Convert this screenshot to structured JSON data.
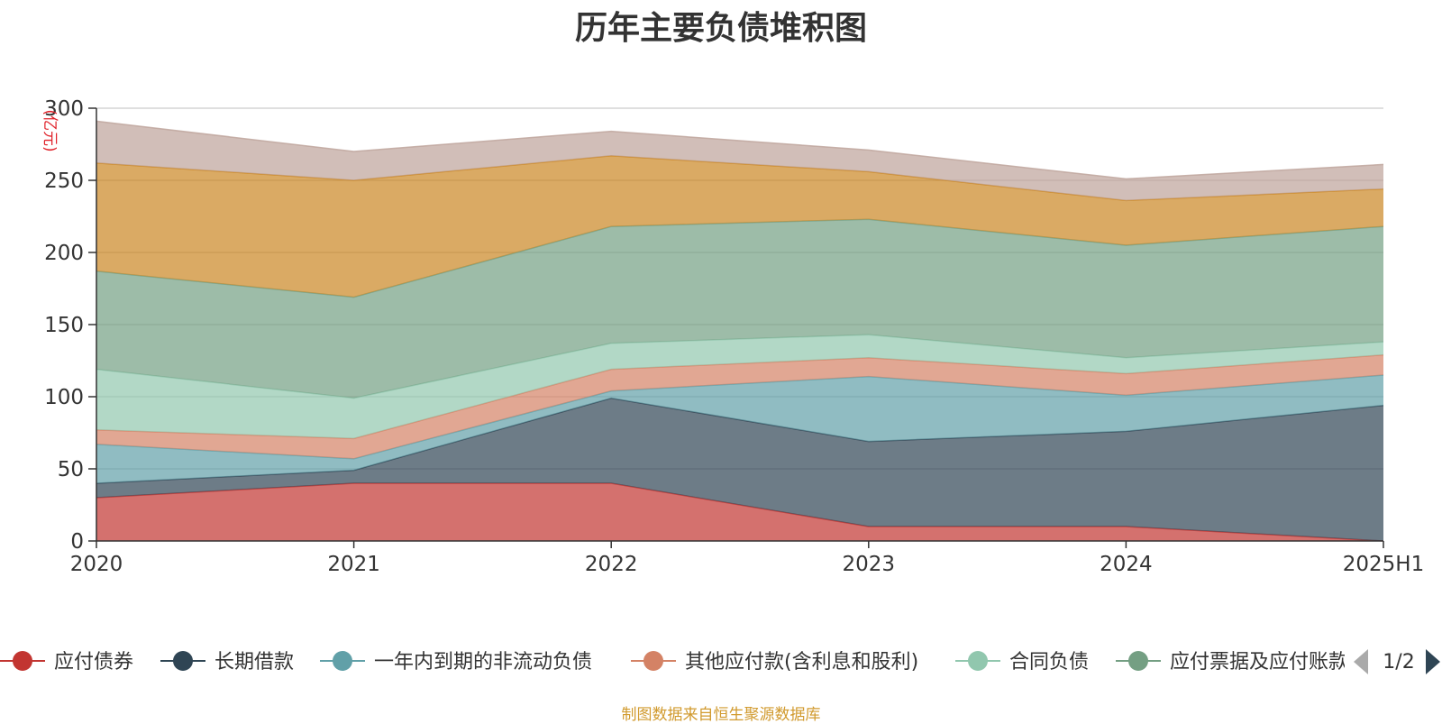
{
  "chart_data": {
    "type": "area",
    "stacked": true,
    "title": "历年主要负债堆积图",
    "unit_label": "(亿元)",
    "x": [
      "2020",
      "2021",
      "2022",
      "2023",
      "2024",
      "2025H1"
    ],
    "ylim": [
      0,
      300
    ],
    "y_ticks": [
      "0",
      "50",
      "100",
      "150",
      "200",
      "250",
      "300"
    ],
    "grid": true,
    "series": [
      {
        "name": "应付债券",
        "color": "#c23531",
        "values": [
          30,
          40,
          40,
          10,
          10,
          0
        ]
      },
      {
        "name": "长期借款",
        "color": "#2f4554",
        "values": [
          10,
          9,
          59,
          59,
          66,
          94
        ]
      },
      {
        "name": "一年内到期的非流动负债",
        "color": "#61a0a8",
        "values": [
          27,
          8,
          5,
          45,
          25,
          21
        ]
      },
      {
        "name": "其他应付款(含利息和股利)",
        "color": "#d48265",
        "values": [
          10,
          14,
          15,
          13,
          15,
          14
        ]
      },
      {
        "name": "合同负债",
        "color": "#91c7ae",
        "values": [
          42,
          28,
          18,
          16,
          11,
          9
        ]
      },
      {
        "name": "应付票据及应付账款",
        "color": "#749f83",
        "values": [
          68,
          70,
          81,
          80,
          78,
          80
        ]
      },
      {
        "name": "",
        "color": "#ca8622",
        "values": [
          75,
          81,
          49,
          33,
          31,
          26
        ]
      },
      {
        "name": "",
        "color": "#bda29a",
        "values": [
          29,
          20,
          17,
          15,
          15,
          17
        ]
      }
    ],
    "legend": {
      "position": "bottom",
      "page_indicator": "1/2"
    }
  },
  "footer": {
    "source": "制图数据来自恒生聚源数据库"
  }
}
